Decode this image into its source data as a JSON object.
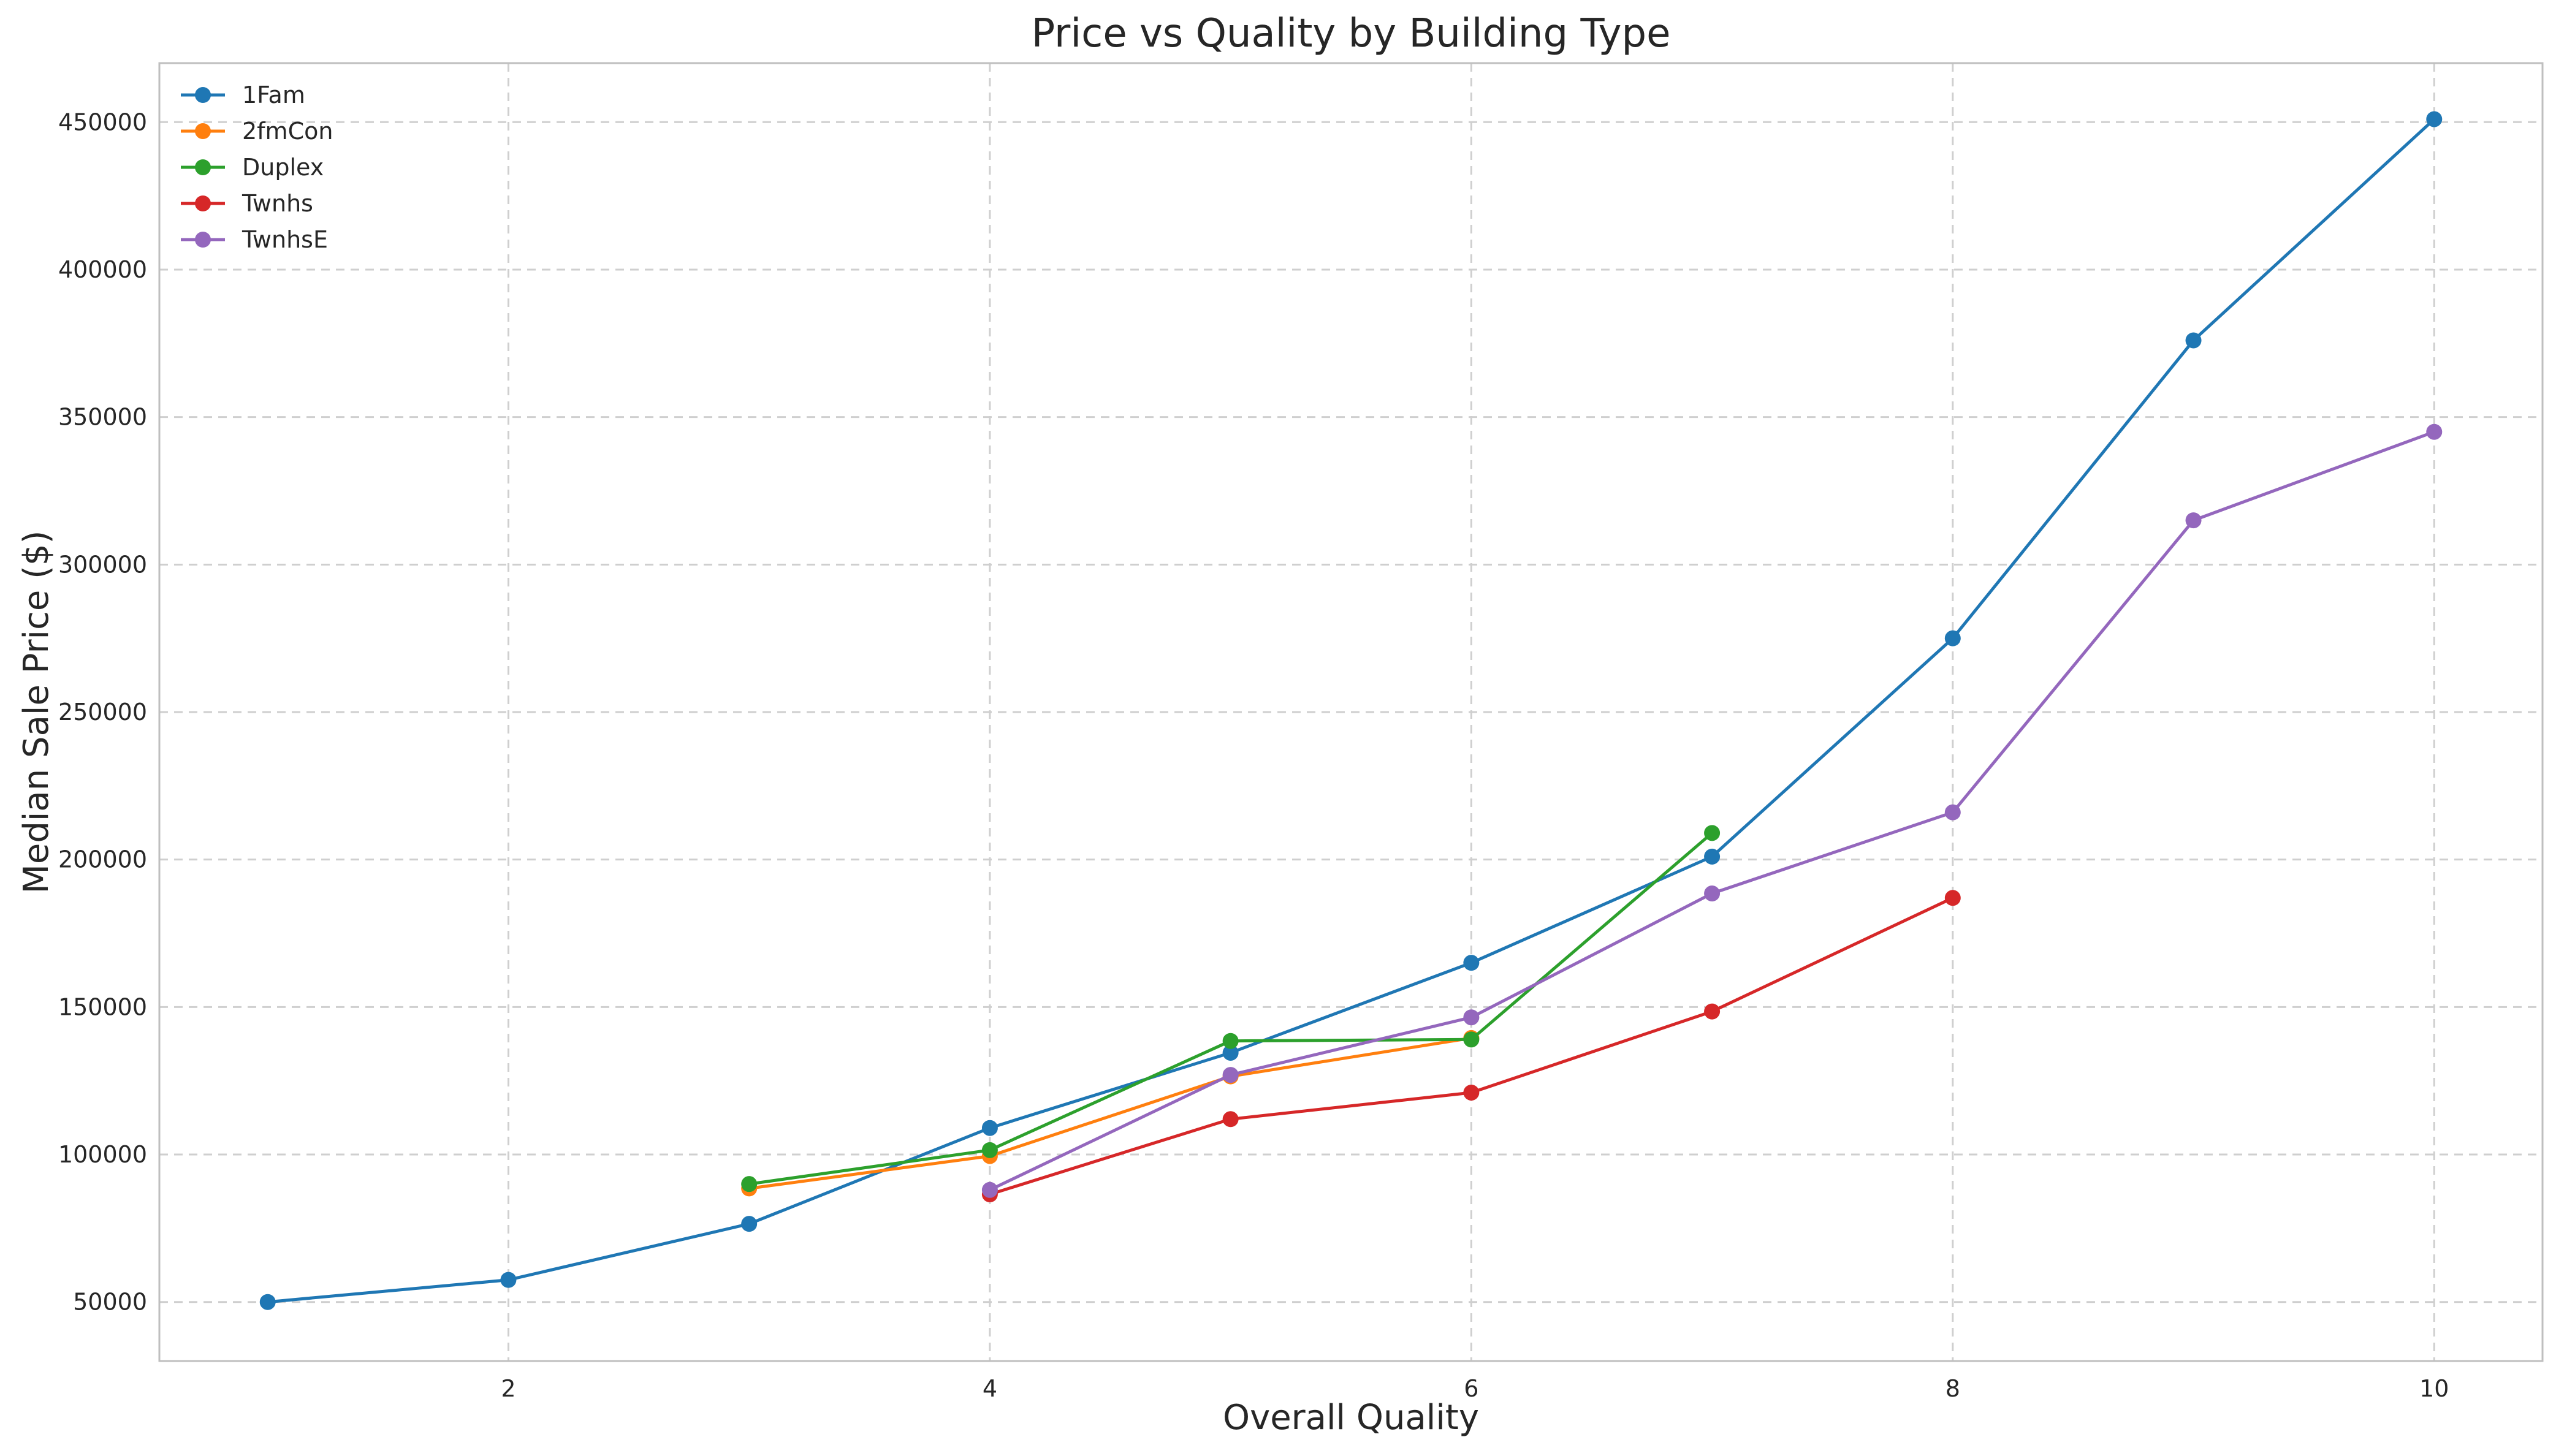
{
  "chart_data": {
    "type": "line",
    "title": "Price vs Quality by Building Type",
    "xlabel": "Overall Quality",
    "ylabel": "Median Sale Price ($)",
    "xlim": [
      0.55,
      10.45
    ],
    "ylim": [
      30000,
      470000
    ],
    "x_ticks": [
      2,
      4,
      6,
      8,
      10
    ],
    "y_ticks": [
      50000,
      100000,
      150000,
      200000,
      250000,
      300000,
      350000,
      400000,
      450000
    ],
    "grid": true,
    "legend_position": "top-left",
    "series": [
      {
        "name": "1Fam",
        "color": "#1f77b4",
        "x": [
          1,
          2,
          3,
          4,
          5,
          6,
          7,
          8,
          9,
          10
        ],
        "y": [
          50000,
          57500,
          76500,
          109000,
          134500,
          165000,
          201000,
          275000,
          376000,
          451000
        ]
      },
      {
        "name": "2fmCon",
        "color": "#ff7f0e",
        "x": [
          3,
          4,
          5,
          6
        ],
        "y": [
          88500,
          99500,
          126500,
          139500
        ]
      },
      {
        "name": "Duplex",
        "color": "#2ca02c",
        "x": [
          3,
          4,
          5,
          6,
          7
        ],
        "y": [
          90000,
          101500,
          138500,
          139000,
          209000
        ]
      },
      {
        "name": "Twnhs",
        "color": "#d62728",
        "x": [
          4,
          5,
          6,
          7,
          8
        ],
        "y": [
          86500,
          112000,
          121000,
          148500,
          187000
        ]
      },
      {
        "name": "TwnhsE",
        "color": "#9467bd",
        "x": [
          4,
          5,
          6,
          7,
          8,
          9,
          10
        ],
        "y": [
          88000,
          127000,
          146500,
          188500,
          216000,
          315000,
          345000
        ]
      }
    ]
  }
}
